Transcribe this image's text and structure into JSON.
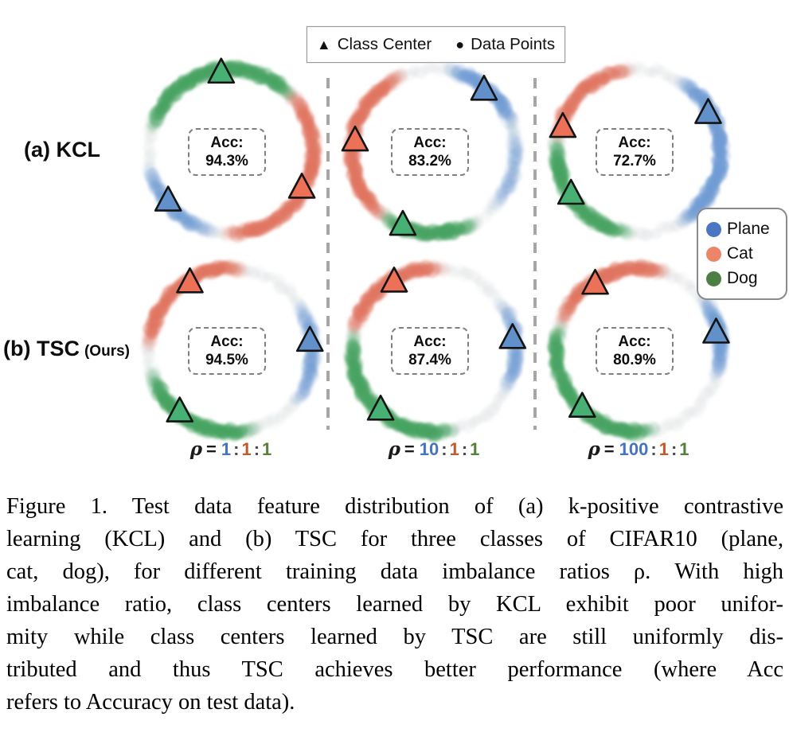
{
  "figure": {
    "top_legend": {
      "class_center": "Class Center",
      "data_points": "Data Points",
      "triangle_marker": "▲",
      "circle_marker": "●"
    },
    "class_legend": [
      {
        "name": "Plane",
        "color": "#4a76c2"
      },
      {
        "name": "Cat",
        "color": "#ee8467"
      },
      {
        "name": "Dog",
        "color": "#4c7f44"
      }
    ],
    "row_labels": [
      {
        "main": "(a) KCL",
        "suffix": ""
      },
      {
        "main": "(b) TSC",
        "suffix": "(Ours)"
      }
    ],
    "acc_prefix": "Acc:",
    "colon": ":",
    "plots": [
      {
        "method": "KCL",
        "ratio": "1:1:1",
        "acc": "94.3%",
        "centers": [
          {
            "cls": "dog",
            "angle": 97
          },
          {
            "cls": "cat",
            "angle": -27
          },
          {
            "cls": "plane",
            "angle": 218
          }
        ],
        "arcs": [
          {
            "cls": "dog",
            "a0": 40,
            "a1": 165,
            "peak": 0.55
          },
          {
            "cls": "cat",
            "a0": -95,
            "a1": 45,
            "peak": 0.45
          },
          {
            "cls": "plane",
            "a0": 190,
            "a1": 258,
            "peak": 0.33
          }
        ]
      },
      {
        "method": "KCL",
        "ratio": "10:1:1",
        "acc": "83.2%",
        "centers": [
          {
            "cls": "plane",
            "angle": 51
          },
          {
            "cls": "cat",
            "angle": 172
          },
          {
            "cls": "dog",
            "angle": 247
          }
        ],
        "arcs": [
          {
            "cls": "cat",
            "a0": 112,
            "a1": 235,
            "peak": 0.5
          },
          {
            "cls": "dog",
            "a0": 232,
            "a1": 300,
            "peak": 0.6
          },
          {
            "cls": "plane",
            "a0": 18,
            "a1": 80,
            "peak": 0.45
          },
          {
            "cls": "plane",
            "a0": -45,
            "a1": 18,
            "peak": 0.15
          }
        ]
      },
      {
        "method": "KCL",
        "ratio": "100:1:1",
        "acc": "72.7%",
        "centers": [
          {
            "cls": "plane",
            "angle": 29
          },
          {
            "cls": "cat",
            "angle": 162
          },
          {
            "cls": "dog",
            "angle": 212
          }
        ],
        "arcs": [
          {
            "cls": "plane",
            "a0": -60,
            "a1": 60,
            "peak": 0.5
          },
          {
            "cls": "cat",
            "a0": 95,
            "a1": 172,
            "peak": 0.45
          },
          {
            "cls": "dog",
            "a0": 172,
            "a1": 265,
            "peak": 0.55
          }
        ]
      },
      {
        "method": "TSC",
        "ratio": "1:1:1",
        "acc": "94.5%",
        "centers": [
          {
            "cls": "cat",
            "angle": 121
          },
          {
            "cls": "plane",
            "angle": 7
          },
          {
            "cls": "dog",
            "angle": 230
          }
        ],
        "arcs": [
          {
            "cls": "cat",
            "a0": 80,
            "a1": 178,
            "peak": 0.5
          },
          {
            "cls": "dog",
            "a0": 195,
            "a1": 288,
            "peak": 0.55
          },
          {
            "cls": "plane",
            "a0": -40,
            "a1": 35,
            "peak": 0.3
          }
        ]
      },
      {
        "method": "TSC",
        "ratio": "10:1:1",
        "acc": "87.4%",
        "centers": [
          {
            "cls": "cat",
            "angle": 120
          },
          {
            "cls": "plane",
            "angle": 9
          },
          {
            "cls": "dog",
            "angle": 228
          }
        ],
        "arcs": [
          {
            "cls": "cat",
            "a0": 82,
            "a1": 168,
            "peak": 0.5
          },
          {
            "cls": "dog",
            "a0": 168,
            "a1": 285,
            "peak": 0.55
          },
          {
            "cls": "plane",
            "a0": -30,
            "a1": 35,
            "peak": 0.3
          }
        ]
      },
      {
        "method": "TSC",
        "ratio": "100:1:1",
        "acc": "80.9%",
        "centers": [
          {
            "cls": "cat",
            "angle": 123
          },
          {
            "cls": "plane",
            "angle": 13
          },
          {
            "cls": "dog",
            "angle": 225
          }
        ],
        "arcs": [
          {
            "cls": "cat",
            "a0": 70,
            "a1": 162,
            "peak": 0.5
          },
          {
            "cls": "dog",
            "a0": 162,
            "a1": 282,
            "peak": 0.55
          },
          {
            "cls": "plane",
            "a0": -20,
            "a1": 40,
            "peak": 0.45
          }
        ]
      }
    ],
    "ratios": [
      {
        "rho": "ρ",
        "eq": "=",
        "parts": [
          {
            "t": "1",
            "c": "#4472c4"
          },
          {
            "t": "1",
            "c": "#c05a2a"
          },
          {
            "t": "1",
            "c": "#55803c"
          }
        ]
      },
      {
        "rho": "ρ",
        "eq": "=",
        "parts": [
          {
            "t": "10",
            "c": "#4472c4"
          },
          {
            "t": "1",
            "c": "#c05a2a"
          },
          {
            "t": "1",
            "c": "#55803c"
          }
        ]
      },
      {
        "rho": "ρ",
        "eq": "=",
        "parts": [
          {
            "t": "100",
            "c": "#4472c4"
          },
          {
            "t": "1",
            "c": "#c05a2a"
          },
          {
            "t": "1",
            "c": "#55803c"
          }
        ]
      }
    ],
    "colors": {
      "triangle": {
        "plane": "#6190ca",
        "cat": "#ec7156",
        "dog": "#46b173"
      },
      "arc": {
        "plane": "#6f9bd3",
        "cat": "#e0745f",
        "dog": "#47a361"
      },
      "base_dot": "#c5cacd",
      "triangle_stroke": "#141414"
    }
  },
  "caption": {
    "lines": [
      "Figure 1. Test data feature distribution of (a) k-positive contrastive",
      "learning (KCL) and (b) TSC for three classes of CIFAR10 (plane,",
      "cat, dog), for different training data imbalance ratios ρ. With high",
      "imbalance ratio, class centers learned by KCL exhibit poor unifor-",
      "mity while class centers learned by TSC are still uniformly dis-",
      "tributed and thus TSC achieves better performance (where Acc",
      "refers to Accuracy on test data)."
    ]
  }
}
